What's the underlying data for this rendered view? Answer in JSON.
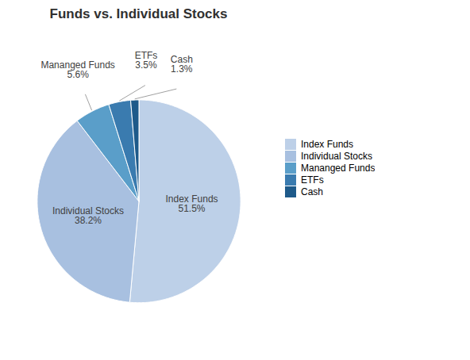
{
  "chart_data": {
    "type": "pie",
    "title": "Funds vs. Individual Stocks",
    "categories": [
      "Index Funds",
      "Individual Stocks",
      "Mananged Funds",
      "ETFs",
      "Cash"
    ],
    "values": [
      51.5,
      38.2,
      5.6,
      3.5,
      1.3
    ],
    "value_labels": [
      "51.5%",
      "38.2%",
      "5.6%",
      "3.5%",
      "1.3%"
    ],
    "colors": [
      "#bdd0e8",
      "#a8c0e0",
      "#5a9ec9",
      "#3a7baf",
      "#1e5a8a"
    ],
    "data_labels": true,
    "legend": "right"
  }
}
